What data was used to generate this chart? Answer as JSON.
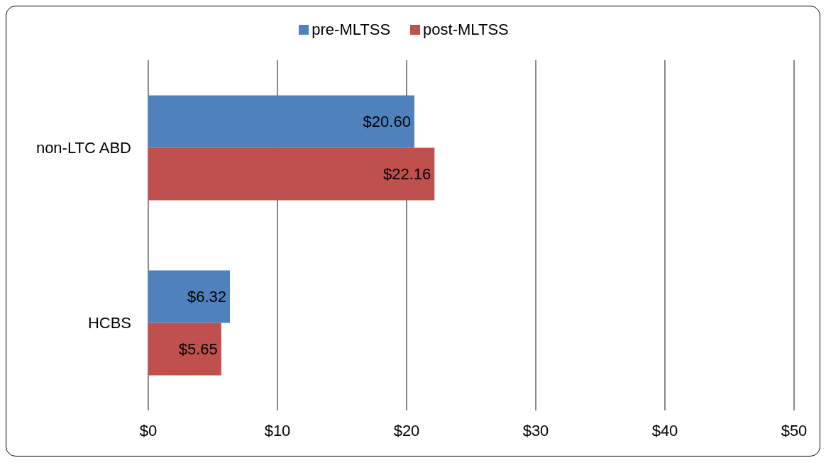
{
  "chart_data": {
    "type": "bar",
    "orientation": "horizontal",
    "categories": [
      "non-LTC ABD",
      "HCBS"
    ],
    "series": [
      {
        "name": "pre-MLTSS",
        "color": "#4f81bd",
        "values": [
          20.6,
          6.32
        ],
        "value_labels": [
          "$20.60",
          "$6.32"
        ]
      },
      {
        "name": "post-MLTSS",
        "color": "#c0504d",
        "values": [
          22.16,
          5.65
        ],
        "value_labels": [
          "$22.16",
          "$5.65"
        ]
      }
    ],
    "xlim": [
      0,
      50
    ],
    "xticks": [
      {
        "value": 0,
        "label": "$0"
      },
      {
        "value": 10,
        "label": "$10"
      },
      {
        "value": 20,
        "label": "$20"
      },
      {
        "value": 30,
        "label": "$30"
      },
      {
        "value": 40,
        "label": "$40"
      },
      {
        "value": 50,
        "label": "$50"
      }
    ],
    "grid": "x",
    "legend": "top"
  }
}
